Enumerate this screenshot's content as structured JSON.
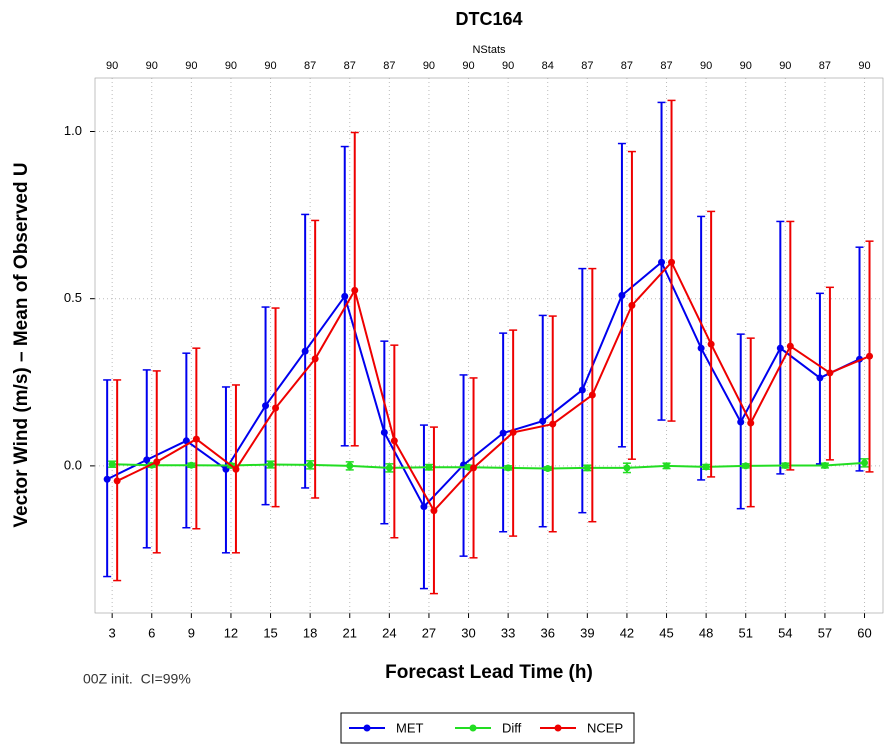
{
  "chart_data": {
    "type": "line",
    "title": "DTC164",
    "top_axis_label": "NStats",
    "nstats": [
      90,
      90,
      90,
      90,
      90,
      87,
      87,
      87,
      90,
      90,
      90,
      84,
      87,
      87,
      87,
      90,
      90,
      90,
      87,
      90
    ],
    "x_label": "Forecast Lead Time (h)",
    "y_label": "Vector Wind (m/s) – Mean of Observed U",
    "annotation": "00Z init.  CI=99%",
    "x": [
      3,
      6,
      9,
      12,
      15,
      18,
      21,
      24,
      27,
      30,
      33,
      36,
      39,
      42,
      45,
      48,
      51,
      54,
      57,
      60
    ],
    "xlim": [
      1.7,
      61.4
    ],
    "xticks": [
      3,
      6,
      9,
      12,
      15,
      18,
      21,
      24,
      27,
      30,
      33,
      36,
      39,
      42,
      45,
      48,
      51,
      54,
      57,
      60
    ],
    "ylim": [
      -0.44,
      1.16
    ],
    "yticks": [
      {
        "value": 0,
        "label": "0.0"
      },
      0.5,
      {
        "value": 1,
        "label": "1.0"
      }
    ],
    "grid": true,
    "legend": "bottom",
    "series": [
      {
        "name": "MET",
        "color": "#0000ee",
        "values": [
          -0.04,
          0.018,
          0.075,
          -0.01,
          0.18,
          0.343,
          0.507,
          0.1,
          -0.122,
          0.003,
          0.098,
          0.134,
          0.227,
          0.51,
          0.609,
          0.352,
          0.131,
          0.352,
          0.263,
          0.319
        ],
        "lower": [
          -0.331,
          -0.245,
          -0.185,
          -0.26,
          -0.116,
          -0.066,
          0.06,
          -0.173,
          -0.367,
          -0.27,
          -0.197,
          -0.182,
          -0.14,
          0.057,
          0.137,
          -0.042,
          -0.128,
          -0.024,
          0.006,
          -0.015
        ],
        "upper": [
          0.257,
          0.287,
          0.337,
          0.236,
          0.475,
          0.752,
          0.955,
          0.373,
          0.122,
          0.272,
          0.397,
          0.45,
          0.59,
          0.964,
          1.087,
          0.746,
          0.394,
          0.731,
          0.516,
          0.654
        ]
      },
      {
        "name": "Diff",
        "color": "#22dd22",
        "values": [
          0.005,
          0.002,
          0.002,
          0.001,
          0.004,
          0.003,
          0.0,
          -0.006,
          -0.004,
          -0.004,
          -0.006,
          -0.008,
          -0.006,
          -0.006,
          0.0,
          -0.003,
          0.0,
          0.001,
          0.001,
          0.009
        ],
        "lower": [
          -0.004,
          -0.004,
          -0.004,
          -0.005,
          -0.006,
          -0.009,
          -0.012,
          -0.018,
          -0.012,
          -0.01,
          -0.012,
          -0.013,
          -0.014,
          -0.02,
          -0.008,
          -0.01,
          -0.006,
          -0.006,
          -0.006,
          -0.003
        ],
        "upper": [
          0.014,
          0.008,
          0.008,
          0.007,
          0.014,
          0.015,
          0.012,
          0.006,
          0.004,
          0.002,
          0.0,
          -0.003,
          0.002,
          0.008,
          0.008,
          0.004,
          0.006,
          0.008,
          0.008,
          0.021
        ]
      },
      {
        "name": "NCEP",
        "color": "#ee0000",
        "values": [
          -0.045,
          0.012,
          0.08,
          -0.01,
          0.173,
          0.32,
          0.525,
          0.075,
          -0.134,
          -0.006,
          0.1,
          0.125,
          0.212,
          0.48,
          0.609,
          0.364,
          0.128,
          0.358,
          0.278,
          0.328
        ],
        "lower": [
          -0.343,
          -0.26,
          -0.188,
          -0.26,
          -0.122,
          -0.096,
          0.06,
          -0.215,
          -0.382,
          -0.275,
          -0.21,
          -0.197,
          -0.167,
          0.02,
          0.134,
          -0.033,
          -0.122,
          -0.012,
          0.018,
          -0.018
        ],
        "upper": [
          0.257,
          0.284,
          0.352,
          0.242,
          0.472,
          0.734,
          0.997,
          0.361,
          0.116,
          0.263,
          0.406,
          0.448,
          0.59,
          0.94,
          1.093,
          0.761,
          0.382,
          0.731,
          0.534,
          0.672
        ]
      }
    ]
  }
}
